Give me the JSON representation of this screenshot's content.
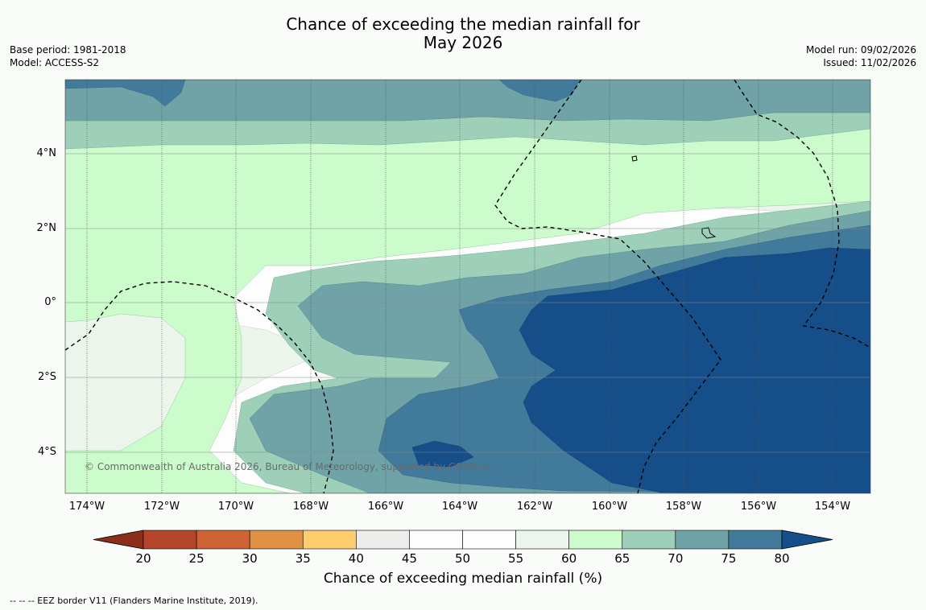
{
  "title": {
    "line1": "Chance of exceeding the median rainfall for",
    "line2": "May 2026"
  },
  "meta_left": {
    "base_period": "Base period: 1981-2018",
    "model": "Model: ACCESS-S2"
  },
  "meta_right": {
    "model_run": "Model run: 09/02/2026",
    "issued": "Issued: 11/02/2026"
  },
  "map": {
    "lat_ticks": [
      "4°N",
      "2°N",
      "0°",
      "2°S",
      "4°S"
    ],
    "lon_ticks": [
      "174°W",
      "172°W",
      "170°W",
      "168°W",
      "166°W",
      "164°W",
      "162°W",
      "160°W",
      "158°W",
      "156°W",
      "154°W"
    ],
    "copyright": "© Commonwealth of Australia 2026, Bureau of Meteorology, supported by COSPPac"
  },
  "colorbar": {
    "ticks": [
      "20",
      "25",
      "30",
      "35",
      "40",
      "45",
      "50",
      "55",
      "60",
      "65",
      "70",
      "75",
      "80"
    ],
    "colors": [
      "#8c2f1a",
      "#b5462a",
      "#cf6335",
      "#e09045",
      "#fdcc6c",
      "#ececea",
      "#fcfdfc",
      "#fcfdfc",
      "#ecf5ec",
      "#ccfccc",
      "#9ecfb9",
      "#6fa3a7",
      "#427a9b",
      "#164e8a"
    ],
    "label": "Chance of exceeding median rainfall (%)"
  },
  "footer": "--  --  -- EEZ border V11 (Flanders Marine Institute, 2019)."
}
